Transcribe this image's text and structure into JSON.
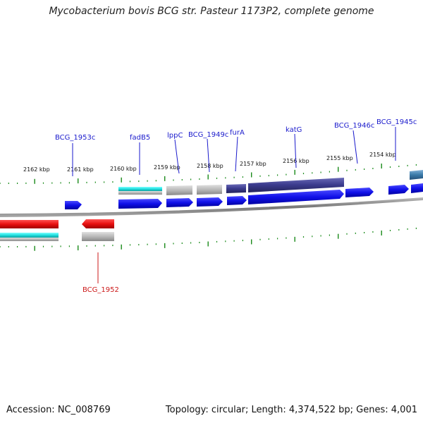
{
  "title": "Mycobacterium bovis BCG str. Pasteur 1173P2, complete genome",
  "footer": {
    "accession": "Accession: NC_008769",
    "summary": "Topology: circular; Length: 4,374,522 bp; Genes: 4,001"
  },
  "kbp_labels": [
    "2162 kbp",
    "2161 kbp",
    "2160 kbp",
    "2159 kbp",
    "2158 kbp",
    "2157 kbp",
    "2156 kbp",
    "2155 kbp",
    "2154 kbp"
  ],
  "forward_gene_labels": [
    "BCG_1953c",
    "fadB5",
    "lppC",
    "BCG_1949c",
    "furA",
    "katG",
    "BCG_1946c",
    "BCG_1945c"
  ],
  "reverse_gene_labels": [
    "BCG_1952"
  ],
  "colors": {
    "forward_gene": "#1010e8",
    "reverse_gene": "#e81010",
    "cds_cyan": "#20e0e0",
    "cds_gray": "#b8b8b8",
    "cds_navy": "#3a3a8c",
    "cds_steel": "#3a7aa8",
    "backbone": "#888888",
    "tick": "#1a8a1a",
    "label_forward": "#1a1acc",
    "label_reverse": "#cc1a1a"
  }
}
